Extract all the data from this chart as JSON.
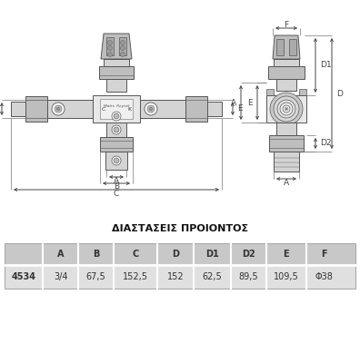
{
  "title": "ΔΙΑΣΤΑΣΕΙΣ ΠΡΟΙΟΝΤΟΣ",
  "table_headers": [
    "",
    "A",
    "B",
    "C",
    "D",
    "D1",
    "D2",
    "E",
    "F"
  ],
  "table_row_label": "4534",
  "table_values": [
    "3/4",
    "67,5",
    "152,5",
    "152",
    "62,5",
    "89,5",
    "109,5",
    "Φ38"
  ],
  "bg_color": "#ffffff",
  "table_header_bg": "#c8c8c8",
  "table_row_bg": "#e0e0e0",
  "dim_line_color": "#444444",
  "text_color": "#333333",
  "title_color": "#111111",
  "header_fontsize": 7.0,
  "value_fontsize": 7.0,
  "title_fontsize": 8.0,
  "body_fill": "#d4d4d4",
  "body_edge": "#555555",
  "body_fill2": "#bebebe",
  "body_fill3": "#e8e8e8"
}
